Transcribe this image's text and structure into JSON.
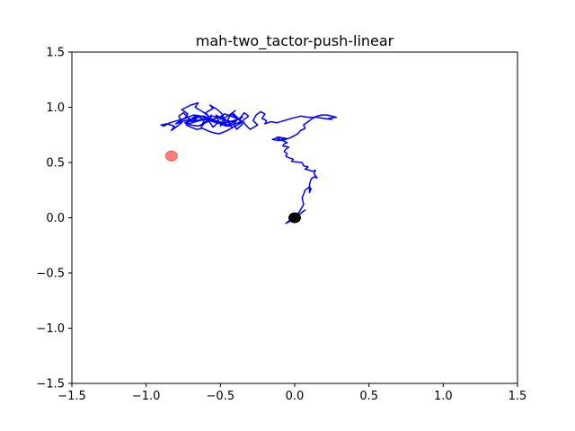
{
  "chart_data": {
    "type": "line",
    "title": "mah-two_tactor-push-linear",
    "xlabel": "",
    "ylabel": "",
    "xlim": [
      -1.5,
      1.5
    ],
    "ylim": [
      -1.5,
      1.5
    ],
    "grid": false,
    "xticks": [
      -1.5,
      -1.0,
      -0.5,
      0.0,
      0.5,
      1.0,
      1.5
    ],
    "yticks": [
      -1.5,
      -1.0,
      -0.5,
      0.0,
      0.5,
      1.0,
      1.5
    ],
    "xtick_labels": [
      "−1.5",
      "−1.0",
      "−0.5",
      "0.0",
      "0.5",
      "1.0",
      "1.5"
    ],
    "ytick_labels": [
      "−1.5",
      "−1.0",
      "−0.5",
      "0.0",
      "0.5",
      "1.0",
      "1.5"
    ],
    "series": [
      {
        "color": "#0000ff",
        "x": [
          0.0,
          0.02,
          0.05,
          0.07,
          0.04,
          0.01,
          -0.03,
          -0.06,
          -0.02,
          0.03,
          0.06,
          0.05,
          0.07,
          0.1,
          0.11,
          0.1,
          0.1,
          0.11,
          0.13,
          0.15,
          0.13,
          0.14,
          0.12,
          0.1,
          0.07,
          0.09,
          0.06,
          0.05,
          -0.02,
          -0.01,
          -0.05,
          -0.06,
          -0.05,
          -0.07,
          -0.06,
          -0.04,
          -0.08,
          -0.07,
          -0.05,
          -0.08,
          -0.06,
          -0.12,
          -0.09,
          -0.08,
          -0.09,
          -0.11,
          -0.1,
          -0.12,
          -0.15,
          -0.11,
          -0.06,
          -0.02,
          0.02,
          0.04,
          0.07,
          0.06,
          0.09,
          0.12,
          0.15,
          0.18,
          0.22,
          0.28,
          0.23,
          0.25,
          0.19,
          0.15,
          0.09,
          0.04,
          -0.02,
          -0.07,
          -0.12,
          -0.16,
          -0.2,
          -0.19,
          -0.22,
          -0.2,
          -0.23,
          -0.26,
          -0.28,
          -0.25,
          -0.3,
          -0.33,
          -0.35,
          -0.31,
          -0.34,
          -0.37,
          -0.35,
          -0.39,
          -0.41,
          -0.38,
          -0.42,
          -0.45,
          -0.43,
          -0.46,
          -0.49,
          -0.47,
          -0.5,
          -0.48,
          -0.53,
          -0.51,
          -0.55,
          -0.58,
          -0.56,
          -0.6,
          -0.63,
          -0.61,
          -0.65,
          -0.68,
          -0.66,
          -0.7,
          -0.73,
          -0.71,
          -0.75,
          -0.78,
          -0.76,
          -0.8,
          -0.83,
          -0.81,
          -0.86,
          -0.9,
          -0.88,
          -0.84,
          -0.79,
          -0.74,
          -0.72,
          -0.76,
          -0.7,
          -0.65,
          -0.67,
          -0.62,
          -0.58,
          -0.6,
          -0.55,
          -0.57,
          -0.52,
          -0.48,
          -0.5,
          -0.45,
          -0.4,
          -0.43,
          -0.38,
          -0.36,
          -0.4,
          -0.44,
          -0.47,
          -0.51,
          -0.55,
          -0.59,
          -0.62,
          -0.66,
          -0.7,
          -0.73,
          -0.69,
          -0.64,
          -0.6,
          -0.55,
          -0.5,
          -0.46,
          -0.42,
          -0.39,
          -0.35,
          -0.37,
          -0.41,
          -0.46,
          -0.52,
          -0.57,
          -0.61,
          -0.66,
          -0.71,
          -0.76,
          -0.8,
          -0.77,
          -0.72,
          -0.68,
          -0.63,
          -0.58,
          -0.54,
          -0.49,
          -0.45,
          -0.42,
          -0.47,
          -0.53,
          -0.59,
          -0.64,
          -0.69,
          -0.74,
          -0.7,
          -0.65,
          -0.6,
          -0.56,
          -0.51,
          -0.47,
          -0.43,
          -0.39,
          -0.36,
          -0.4,
          -0.45,
          -0.51,
          -0.57,
          -0.62,
          -0.67,
          -0.72,
          -0.66,
          -0.6,
          -0.55,
          -0.5,
          -0.46,
          -0.41
        ],
        "y": [
          0.0,
          0.02,
          0.05,
          0.07,
          0.04,
          0.01,
          -0.03,
          -0.05,
          -0.01,
          0.05,
          0.12,
          0.18,
          0.25,
          0.28,
          0.26,
          0.23,
          0.3,
          0.35,
          0.37,
          0.36,
          0.4,
          0.43,
          0.42,
          0.43,
          0.44,
          0.46,
          0.47,
          0.5,
          0.51,
          0.53,
          0.55,
          0.56,
          0.58,
          0.6,
          0.62,
          0.64,
          0.65,
          0.67,
          0.68,
          0.7,
          0.72,
          0.73,
          0.72,
          0.71,
          0.7,
          0.71,
          0.73,
          0.72,
          0.71,
          0.7,
          0.71,
          0.73,
          0.76,
          0.79,
          0.81,
          0.84,
          0.87,
          0.9,
          0.92,
          0.93,
          0.93,
          0.91,
          0.9,
          0.89,
          0.9,
          0.91,
          0.91,
          0.92,
          0.9,
          0.88,
          0.86,
          0.87,
          0.85,
          0.88,
          0.9,
          0.94,
          0.96,
          0.93,
          0.88,
          0.84,
          0.8,
          0.84,
          0.88,
          0.92,
          0.95,
          0.9,
          0.85,
          0.8,
          0.85,
          0.9,
          0.95,
          0.89,
          0.84,
          0.88,
          0.92,
          0.87,
          0.83,
          0.89,
          0.93,
          0.87,
          0.82,
          0.88,
          0.93,
          0.87,
          0.82,
          0.88,
          0.92,
          0.87,
          0.93,
          0.89,
          0.84,
          0.9,
          0.95,
          0.92,
          0.86,
          0.82,
          0.79,
          0.83,
          0.85,
          0.84,
          0.83,
          0.86,
          0.88,
          0.9,
          0.94,
          0.98,
          1.02,
          1.04,
          1.0,
          0.96,
          0.92,
          0.95,
          0.99,
          1.02,
          0.98,
          0.93,
          0.89,
          0.92,
          0.97,
          0.94,
          0.9,
          0.86,
          0.83,
          0.8,
          0.78,
          0.76,
          0.77,
          0.79,
          0.81,
          0.8,
          0.82,
          0.84,
          0.86,
          0.88,
          0.89,
          0.87,
          0.85,
          0.83,
          0.86,
          0.89,
          0.91,
          0.9,
          0.88,
          0.86,
          0.87,
          0.9,
          0.92,
          0.91,
          0.89,
          0.87,
          0.85,
          0.88,
          0.91,
          0.93,
          0.92,
          0.9,
          0.88,
          0.86,
          0.84,
          0.82,
          0.85,
          0.88,
          0.9,
          0.92,
          0.89,
          0.86,
          0.84,
          0.83,
          0.86,
          0.89,
          0.91,
          0.94,
          0.92,
          0.9,
          0.87,
          0.85,
          0.83,
          0.86,
          0.89,
          0.92,
          0.9,
          0.87,
          0.88,
          0.9,
          0.92,
          0.9,
          0.88,
          0.87
        ]
      }
    ],
    "markers": [
      {
        "x": -0.83,
        "y": 0.56,
        "color": "#ff0000",
        "opacity": 0.5
      },
      {
        "x": 0.0,
        "y": 0.0,
        "color": "#000000",
        "opacity": 1.0
      }
    ]
  }
}
